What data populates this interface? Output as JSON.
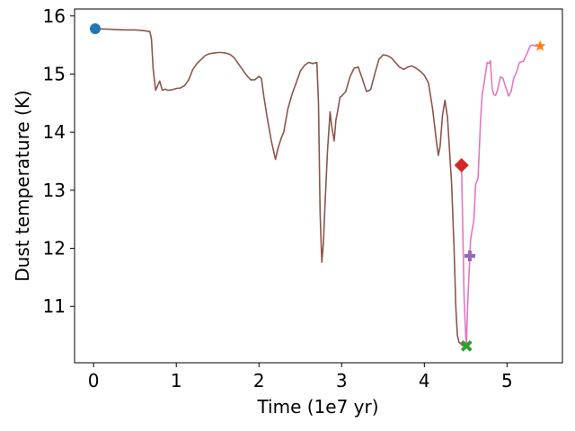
{
  "chart_data": {
    "type": "line",
    "title": "",
    "xlabel": "Time (1e7 yr)",
    "ylabel": "Dust temperature (K)",
    "xlim": [
      -0.23,
      5.67
    ],
    "ylim": [
      10.03,
      16.12
    ],
    "xticks": [
      0,
      1,
      2,
      3,
      4,
      5
    ],
    "yticks": [
      11,
      12,
      13,
      14,
      15,
      16
    ],
    "grid": false,
    "legend": "none",
    "series": [
      {
        "color": "#e377c2",
        "x": [
          4.45,
          4.48,
          4.5,
          4.51,
          4.52,
          4.54,
          4.56,
          4.6,
          4.62,
          4.65,
          4.68,
          4.7,
          4.72,
          4.76,
          4.78,
          4.8,
          4.82,
          4.84,
          4.86,
          4.88,
          4.92,
          4.95,
          4.99,
          5.02,
          5.05,
          5.08,
          5.12,
          5.15,
          5.2,
          5.25,
          5.28,
          5.3,
          5.33,
          5.37,
          5.4
        ],
        "y": [
          13.43,
          11.2,
          10.5,
          10.32,
          10.9,
          11.55,
          12.15,
          12.5,
          13.1,
          13.2,
          14.2,
          14.65,
          14.82,
          15.2,
          15.18,
          15.23,
          14.75,
          14.65,
          14.63,
          14.7,
          14.95,
          14.93,
          14.75,
          14.62,
          14.7,
          14.92,
          15.05,
          15.2,
          15.22,
          15.38,
          15.48,
          15.5,
          15.49,
          15.48,
          15.48
        ]
      },
      {
        "color": "#8c564b",
        "x": [
          0.02,
          0.2,
          0.4,
          0.5,
          0.6,
          0.68,
          0.7,
          0.72,
          0.75,
          0.8,
          0.83,
          0.87,
          0.9,
          0.95,
          1.0,
          1.05,
          1.1,
          1.15,
          1.2,
          1.25,
          1.3,
          1.35,
          1.4,
          1.45,
          1.5,
          1.55,
          1.6,
          1.65,
          1.7,
          1.75,
          1.8,
          1.85,
          1.9,
          1.95,
          2.0,
          2.03,
          2.06,
          2.1,
          2.15,
          2.2,
          2.23,
          2.27,
          2.3,
          2.35,
          2.4,
          2.45,
          2.5,
          2.55,
          2.6,
          2.65,
          2.7,
          2.72,
          2.74,
          2.76,
          2.78,
          2.8,
          2.83,
          2.86,
          2.88,
          2.91,
          2.93,
          2.95,
          2.98,
          3.0,
          3.05,
          3.1,
          3.15,
          3.2,
          3.25,
          3.3,
          3.35,
          3.4,
          3.45,
          3.5,
          3.55,
          3.6,
          3.65,
          3.7,
          3.75,
          3.8,
          3.85,
          3.9,
          3.95,
          4.0,
          4.05,
          4.1,
          4.15,
          4.17,
          4.19,
          4.22,
          4.25,
          4.28,
          4.3,
          4.33,
          4.36,
          4.38,
          4.4,
          4.42,
          4.44,
          4.46,
          4.48,
          4.49,
          4.5
        ],
        "y": [
          15.78,
          15.77,
          15.76,
          15.76,
          15.75,
          15.73,
          15.6,
          15.1,
          14.72,
          14.88,
          14.72,
          14.74,
          14.72,
          14.73,
          14.75,
          14.76,
          14.8,
          14.9,
          15.08,
          15.18,
          15.25,
          15.32,
          15.35,
          15.36,
          15.37,
          15.37,
          15.36,
          15.34,
          15.28,
          15.18,
          15.08,
          14.98,
          14.9,
          14.9,
          14.96,
          14.92,
          14.6,
          14.25,
          13.85,
          13.53,
          13.72,
          13.9,
          14.0,
          14.4,
          14.65,
          14.85,
          15.05,
          15.15,
          15.2,
          15.18,
          15.2,
          14.5,
          12.6,
          11.76,
          12.1,
          12.8,
          13.7,
          14.35,
          14.1,
          13.85,
          14.2,
          14.35,
          14.6,
          14.62,
          14.7,
          14.95,
          15.1,
          15.12,
          14.92,
          14.7,
          14.73,
          15.0,
          15.25,
          15.33,
          15.32,
          15.28,
          15.2,
          15.12,
          15.08,
          15.12,
          15.14,
          15.1,
          15.05,
          14.98,
          14.85,
          14.4,
          13.8,
          13.6,
          13.75,
          14.3,
          14.55,
          14.25,
          13.8,
          13.1,
          12.0,
          11.0,
          10.5,
          10.38,
          10.36,
          10.33,
          10.32,
          10.33,
          10.35
        ]
      }
    ],
    "markers": [
      {
        "shape": "circle",
        "color": "#1f77b4",
        "x": 0.02,
        "y": 15.78
      },
      {
        "shape": "star",
        "color": "#ff7f0e",
        "x": 5.4,
        "y": 15.48
      },
      {
        "shape": "diamond",
        "color": "#d62728",
        "x": 4.45,
        "y": 13.43
      },
      {
        "shape": "plus",
        "color": "#9467bd",
        "x": 4.55,
        "y": 11.87
      },
      {
        "shape": "x",
        "color": "#2ca02c",
        "x": 4.51,
        "y": 10.32
      }
    ]
  }
}
